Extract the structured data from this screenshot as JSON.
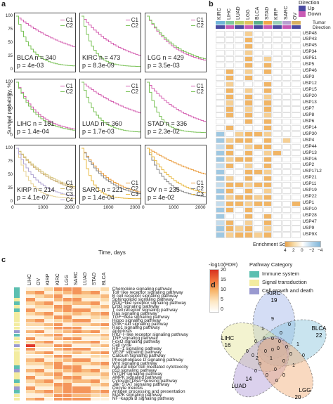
{
  "panels": {
    "a": "a",
    "b": "b",
    "c": "c",
    "d": "d"
  },
  "panel_a": {
    "ylabel": "Survival probability, %",
    "xlabel": "Time, days",
    "yticks": [
      "0",
      "25",
      "50",
      "75",
      "100"
    ],
    "xticks": [
      "0",
      "1000",
      "2000"
    ],
    "plots": [
      {
        "cancer": "BLCA",
        "n": "340",
        "p": "4e-03",
        "legend": [
          "C1",
          "C2"
        ]
      },
      {
        "cancer": "KIRC",
        "n": "473",
        "p": "8.3e-09",
        "legend": [
          "C1",
          "C2"
        ]
      },
      {
        "cancer": "LGG",
        "n": "429",
        "p": "3.5e-03",
        "legend": [
          "C1",
          "C2"
        ]
      },
      {
        "cancer": "LIHC",
        "n": "181",
        "p": "1.4e-04",
        "legend": [
          "C1",
          "C2"
        ]
      },
      {
        "cancer": "LUAD",
        "n": "360",
        "p": "1.7e-03",
        "legend": [
          "C1",
          "C2"
        ]
      },
      {
        "cancer": "STAD",
        "n": "336",
        "p": "2.3e-02",
        "legend": [
          "C1",
          "C2"
        ]
      },
      {
        "cancer": "KIRP",
        "n": "214",
        "p": "4.1e-07",
        "legend": [
          "C1",
          "C2",
          "C3",
          "C4"
        ]
      },
      {
        "cancer": "SARC",
        "n": "221",
        "p": "1.4e-04",
        "legend": [
          "C1",
          "C2",
          "C3"
        ]
      },
      {
        "cancer": "OV",
        "n": "235",
        "p": "4e-02",
        "legend": [
          "C1",
          "C2",
          "C3"
        ]
      }
    ]
  },
  "panel_b": {
    "columns": [
      "KIRC",
      "LIHC",
      "LUAD",
      "LGG",
      "BLCA",
      "STAD",
      "KIRP",
      "SARC",
      "OV"
    ],
    "direction_title": "Direction",
    "direction_up": "Up",
    "direction_down": "Down",
    "tumor_label": "Tumor",
    "direction_label": "Direction",
    "rows": [
      "USP48",
      "USP43",
      "USP45",
      "USP34",
      "USP51",
      "USP5",
      "USP46",
      "USP3",
      "USP12",
      "USP15",
      "USP20",
      "USP13",
      "USP7",
      "USP8",
      "USP6",
      "USP14",
      "USP30",
      "USP4",
      "USP44",
      "USP13",
      "USP16",
      "USP2",
      "USP17L2",
      "USP21",
      "USP11",
      "USP19",
      "USP22",
      "USP1",
      "USP10",
      "USP28",
      "USP47",
      "USP9",
      "USP9X"
    ],
    "score_title": "Enrichment Score",
    "score_ticks": [
      "4",
      "2",
      "0",
      "−2",
      "−4"
    ],
    "colors": {
      "up": "#4a4aa0",
      "down": "#c85ab4",
      "pos": "#e8a24a",
      "neg": "#7fb5d8"
    }
  },
  "panel_c": {
    "columns": [
      "LIHC",
      "OV",
      "KIRP",
      "KIRC",
      "LGG",
      "SARC",
      "LUAD",
      "STAD",
      "BLCA"
    ],
    "pathways": [
      "Chemokine signaling pathway",
      "Toll−like receptor signaling pathway",
      "B cell receptor signaling pathway",
      "Sphingolipid signaling pathway",
      "NOD−like receptor signaling pathway",
      "ErbB signaling pathway",
      "T cell receptor signaling pathway",
      "Ras signaling pathway",
      "TGF−beta signaling pathway",
      "Hippo signaling pathway",
      "PI3K−Akt signaling pathway",
      "Rap1 signaling pathway",
      "Apoptosis",
      "RIG−I−like receptor signaling pathway",
      "TNF signaling pathway",
      "FoxO signaling pathway",
      "Cell cycle",
      "HIF−1 signaling pathway",
      "VEGF signaling pathway",
      "Calcium signaling pathway",
      "Phospholipase D signaling pathway",
      "Wnt signaling pathway",
      "Natural killer cell mediated cytotoxicity",
      "p53 signaling pathway",
      "mTOR signaling pathway",
      "AMPK signaling pathway",
      "Cytosolic DNA−sensing pathway",
      "Jak−STAT signaling pathway",
      "Oocyte meiosis",
      "Antigen processing and presentation",
      "MAPK signaling pathway",
      "NF−kappa B signaling pathway"
    ],
    "categories": [
      "I",
      "I",
      "I",
      "S",
      "I",
      "S",
      "I",
      "S",
      "S",
      "S",
      "S",
      "S",
      "G",
      "I",
      "S",
      "S",
      "G",
      "S",
      "S",
      "S",
      "S",
      "S",
      "I",
      "G",
      "S",
      "S",
      "I",
      "S",
      "G",
      "I",
      "S",
      "S"
    ],
    "fdr_title": "-log10(FDR)",
    "fdr_ticks": [
      "20",
      "15",
      "10",
      "5",
      "0"
    ],
    "category_title": "Pathway Category",
    "category_items": [
      {
        "label": "Immune system",
        "color": "#5cbfb0"
      },
      {
        "label": "Signal transduction",
        "color": "#f3eca0"
      },
      {
        "label": "Cell growth and death",
        "color": "#9a9ad0"
      }
    ]
  },
  "panel_d": {
    "sets": [
      {
        "name": "KIRC",
        "total": "19",
        "color": "#9fb4e8"
      },
      {
        "name": "BLCA",
        "total": "22",
        "color": "#88c4dc"
      },
      {
        "name": "LIHC",
        "total": "16",
        "color": "#e4e496"
      },
      {
        "name": "LUAD",
        "total": "14",
        "color": "#b09ad6"
      },
      {
        "name": "LGG",
        "total": "20",
        "color": "#f2ab74"
      }
    ],
    "region_counts": [
      "9",
      "0",
      "1",
      "0",
      "1",
      "0",
      "0",
      "0",
      "0",
      "0",
      "0",
      "0",
      "1",
      "0",
      "0",
      "0",
      "0",
      "0",
      "1",
      "0",
      "0",
      "0",
      "0",
      "0",
      "0",
      "2",
      "0"
    ]
  }
}
